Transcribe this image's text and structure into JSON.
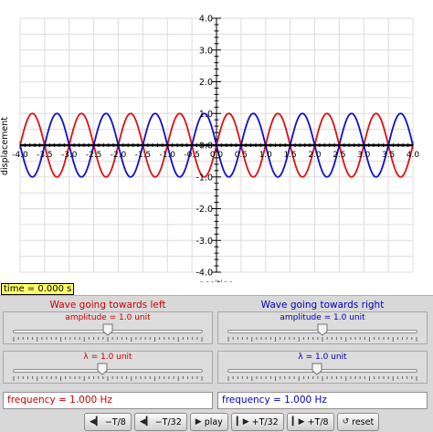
{
  "plot": {
    "xlabel": "position",
    "ylabel": "displacement",
    "xlim": [
      -4.0,
      4.0
    ],
    "ylim": [
      -4.0,
      4.0
    ],
    "x_ticks": [
      "-4.0",
      "-3.5",
      "-3.0",
      "-2.5",
      "-2.0",
      "-1.5",
      "-1.0",
      "-0.5",
      "0.0",
      "0.5",
      "1.0",
      "1.5",
      "2.0",
      "2.5",
      "3.0",
      "3.5",
      "4.0"
    ],
    "y_ticks": [
      "4.0",
      "3.0",
      "2.0",
      "1.0",
      "0.0",
      "-1.0",
      "-2.0",
      "-3.0",
      "-4.0"
    ],
    "grid": true
  },
  "chart_data": {
    "type": "line",
    "xlim": [
      -4.0,
      4.0
    ],
    "ylim": [
      -4.0,
      4.0
    ],
    "series": [
      {
        "color": "#e01010",
        "amplitude": 1.0,
        "wavelength": 1.0,
        "phase_sign": 1
      },
      {
        "color": "#1010d0",
        "amplitude": 1.0,
        "wavelength": 1.0,
        "phase_sign": -1
      },
      {
        "color": "#000000",
        "amplitude": 0.0,
        "wavelength": 1.0,
        "phase_sign": 0
      }
    ]
  },
  "time": {
    "label": "time = 0.000 s"
  },
  "left_wave": {
    "title": "Wave going towards left",
    "amplitude_label": "amplitude = 1.0 unit",
    "amplitude_fraction": 0.5,
    "lambda_label": "λ = 1.0 unit",
    "lambda_fraction": 0.47,
    "frequency_label": "frequency = 1.000 Hz",
    "color": "#cc0000"
  },
  "right_wave": {
    "title": "Wave going towards right",
    "amplitude_label": "amplitude = 1.0 unit",
    "amplitude_fraction": 0.5,
    "lambda_label": "λ = 1.0 unit",
    "lambda_fraction": 0.47,
    "frequency_label": "frequency = 1.000 Hz",
    "color": "#0000bb"
  },
  "buttons": {
    "minus_t8": "−T/8",
    "minus_t32": "−T/32",
    "play": "play",
    "plus_t32": "+T/32",
    "plus_t8": "+T/8",
    "reset": "reset"
  },
  "icons": {
    "step_back": "step-back-icon",
    "play": "play-icon",
    "step_forward": "step-forward-icon",
    "reset": "reset-icon"
  }
}
